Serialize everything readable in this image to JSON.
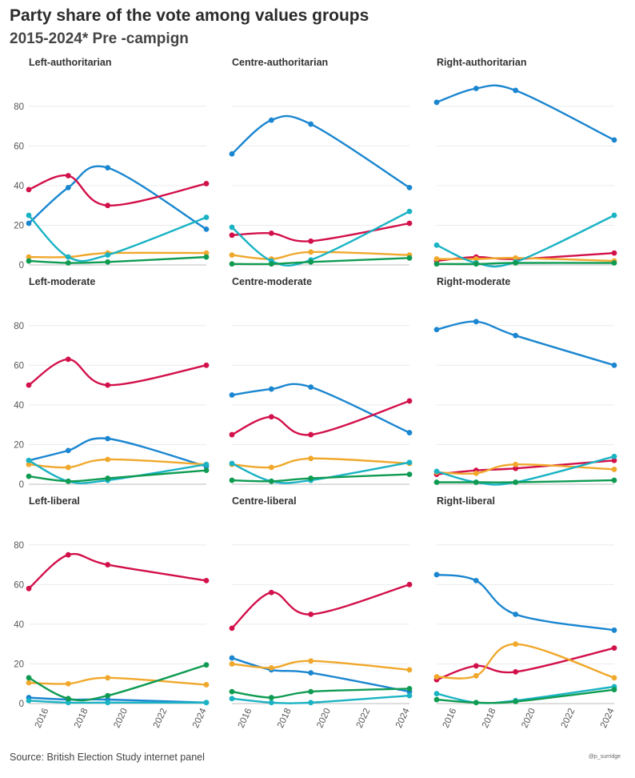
{
  "header": {
    "title": "Party share of the vote among values groups",
    "subtitle": "2015-2024* Pre -campign"
  },
  "footer": {
    "source": "Source: British Election Study internet panel",
    "credit": "@p_surridge"
  },
  "chart_data": {
    "type": "line",
    "layout": "small-multiples 3x3",
    "x_ticks": [
      "2016",
      "2018",
      "2020",
      "2022",
      "2024"
    ],
    "x_tick_values": [
      2016,
      2018,
      2020,
      2022,
      2024
    ],
    "xlim": [
      2015,
      2024
    ],
    "y_ticks": [
      "0",
      "20",
      "40",
      "60",
      "80"
    ],
    "y_tick_values": [
      0,
      20,
      40,
      60,
      80
    ],
    "ylim": [
      0,
      90
    ],
    "grid": true,
    "legend": "none",
    "series_colors": [
      "#1a86d0",
      "#d2104a",
      "#f0a82c",
      "#1ab3c4",
      "#0f9b52"
    ],
    "x": [
      2015,
      2017,
      2019,
      2024
    ],
    "panels": [
      {
        "title": "Left-authoritarian",
        "series": [
          {
            "color": "#1a86d0",
            "values": [
              21,
              39,
              49,
              18
            ]
          },
          {
            "color": "#d2104a",
            "values": [
              38,
              45,
              30,
              41
            ]
          },
          {
            "color": "#f0a82c",
            "values": [
              4,
              4,
              6,
              6
            ]
          },
          {
            "color": "#1ab3c4",
            "values": [
              25,
              4,
              5,
              24
            ]
          },
          {
            "color": "#0f9b52",
            "values": [
              2,
              1,
              1.5,
              4
            ]
          }
        ]
      },
      {
        "title": "Centre-authoritarian",
        "series": [
          {
            "color": "#1a86d0",
            "values": [
              56,
              73,
              71,
              39
            ]
          },
          {
            "color": "#d2104a",
            "values": [
              15,
              16,
              12,
              21
            ]
          },
          {
            "color": "#f0a82c",
            "values": [
              5,
              3,
              6.5,
              5
            ]
          },
          {
            "color": "#1ab3c4",
            "values": [
              19,
              2,
              2.5,
              27
            ]
          },
          {
            "color": "#0f9b52",
            "values": [
              0.5,
              0.5,
              1.5,
              3.5
            ]
          }
        ]
      },
      {
        "title": "Right-authoritarian",
        "series": [
          {
            "color": "#1a86d0",
            "values": [
              82,
              89,
              88,
              63
            ]
          },
          {
            "color": "#d2104a",
            "values": [
              2,
              4,
              3,
              6
            ]
          },
          {
            "color": "#f0a82c",
            "values": [
              3,
              3,
              3.5,
              2
            ]
          },
          {
            "color": "#1ab3c4",
            "values": [
              10,
              1,
              1.5,
              25
            ]
          },
          {
            "color": "#0f9b52",
            "values": [
              0.5,
              0.5,
              1,
              1
            ]
          }
        ]
      },
      {
        "title": "Left-moderate",
        "series": [
          {
            "color": "#1a86d0",
            "values": [
              12,
              17,
              23,
              9
            ]
          },
          {
            "color": "#d2104a",
            "values": [
              50,
              63,
              50,
              60
            ]
          },
          {
            "color": "#f0a82c",
            "values": [
              10,
              8.5,
              12.5,
              10
            ]
          },
          {
            "color": "#1ab3c4",
            "values": [
              12,
              1.5,
              2,
              10
            ]
          },
          {
            "color": "#0f9b52",
            "values": [
              4,
              1.5,
              3,
              7
            ]
          }
        ]
      },
      {
        "title": "Centre-moderate",
        "series": [
          {
            "color": "#1a86d0",
            "values": [
              45,
              48,
              49,
              26
            ]
          },
          {
            "color": "#d2104a",
            "values": [
              25,
              34,
              25,
              42
            ]
          },
          {
            "color": "#f0a82c",
            "values": [
              10,
              8.5,
              13,
              10.5
            ]
          },
          {
            "color": "#1ab3c4",
            "values": [
              10.5,
              1.5,
              2,
              11
            ]
          },
          {
            "color": "#0f9b52",
            "values": [
              2,
              1.5,
              3,
              5
            ]
          }
        ]
      },
      {
        "title": "Right-moderate",
        "series": [
          {
            "color": "#1a86d0",
            "values": [
              78,
              82,
              75,
              60
            ]
          },
          {
            "color": "#d2104a",
            "values": [
              5,
              7,
              8,
              12
            ]
          },
          {
            "color": "#f0a82c",
            "values": [
              6,
              5.5,
              10,
              7.5
            ]
          },
          {
            "color": "#1ab3c4",
            "values": [
              6.5,
              1,
              1,
              14
            ]
          },
          {
            "color": "#0f9b52",
            "values": [
              1,
              1,
              1,
              2
            ]
          }
        ]
      },
      {
        "title": "Left-liberal",
        "series": [
          {
            "color": "#1a86d0",
            "values": [
              3,
              2,
              2,
              0.5
            ]
          },
          {
            "color": "#d2104a",
            "values": [
              58,
              75,
              70,
              62
            ]
          },
          {
            "color": "#f0a82c",
            "values": [
              10.5,
              10,
              13,
              9.5
            ]
          },
          {
            "color": "#1ab3c4",
            "values": [
              1.5,
              0.5,
              0.5,
              0.5
            ]
          },
          {
            "color": "#0f9b52",
            "values": [
              13,
              2.5,
              4,
              19.5
            ]
          }
        ]
      },
      {
        "title": "Centre-liberal",
        "series": [
          {
            "color": "#1a86d0",
            "values": [
              23,
              17,
              15.5,
              6
            ]
          },
          {
            "color": "#d2104a",
            "values": [
              38,
              56,
              45,
              60
            ]
          },
          {
            "color": "#f0a82c",
            "values": [
              20,
              18,
              21.5,
              17
            ]
          },
          {
            "color": "#1ab3c4",
            "values": [
              2.5,
              0.5,
              0.5,
              4
            ]
          },
          {
            "color": "#0f9b52",
            "values": [
              6,
              3,
              6,
              7.5
            ]
          }
        ]
      },
      {
        "title": "Right-liberal",
        "series": [
          {
            "color": "#1a86d0",
            "values": [
              65,
              62,
              45,
              37
            ]
          },
          {
            "color": "#d2104a",
            "values": [
              12,
              19,
              16,
              28
            ]
          },
          {
            "color": "#f0a82c",
            "values": [
              13.5,
              14,
              30,
              13
            ]
          },
          {
            "color": "#1ab3c4",
            "values": [
              5,
              0.5,
              1.5,
              8.5
            ]
          },
          {
            "color": "#0f9b52",
            "values": [
              2,
              0.5,
              1,
              7
            ]
          }
        ]
      }
    ]
  }
}
